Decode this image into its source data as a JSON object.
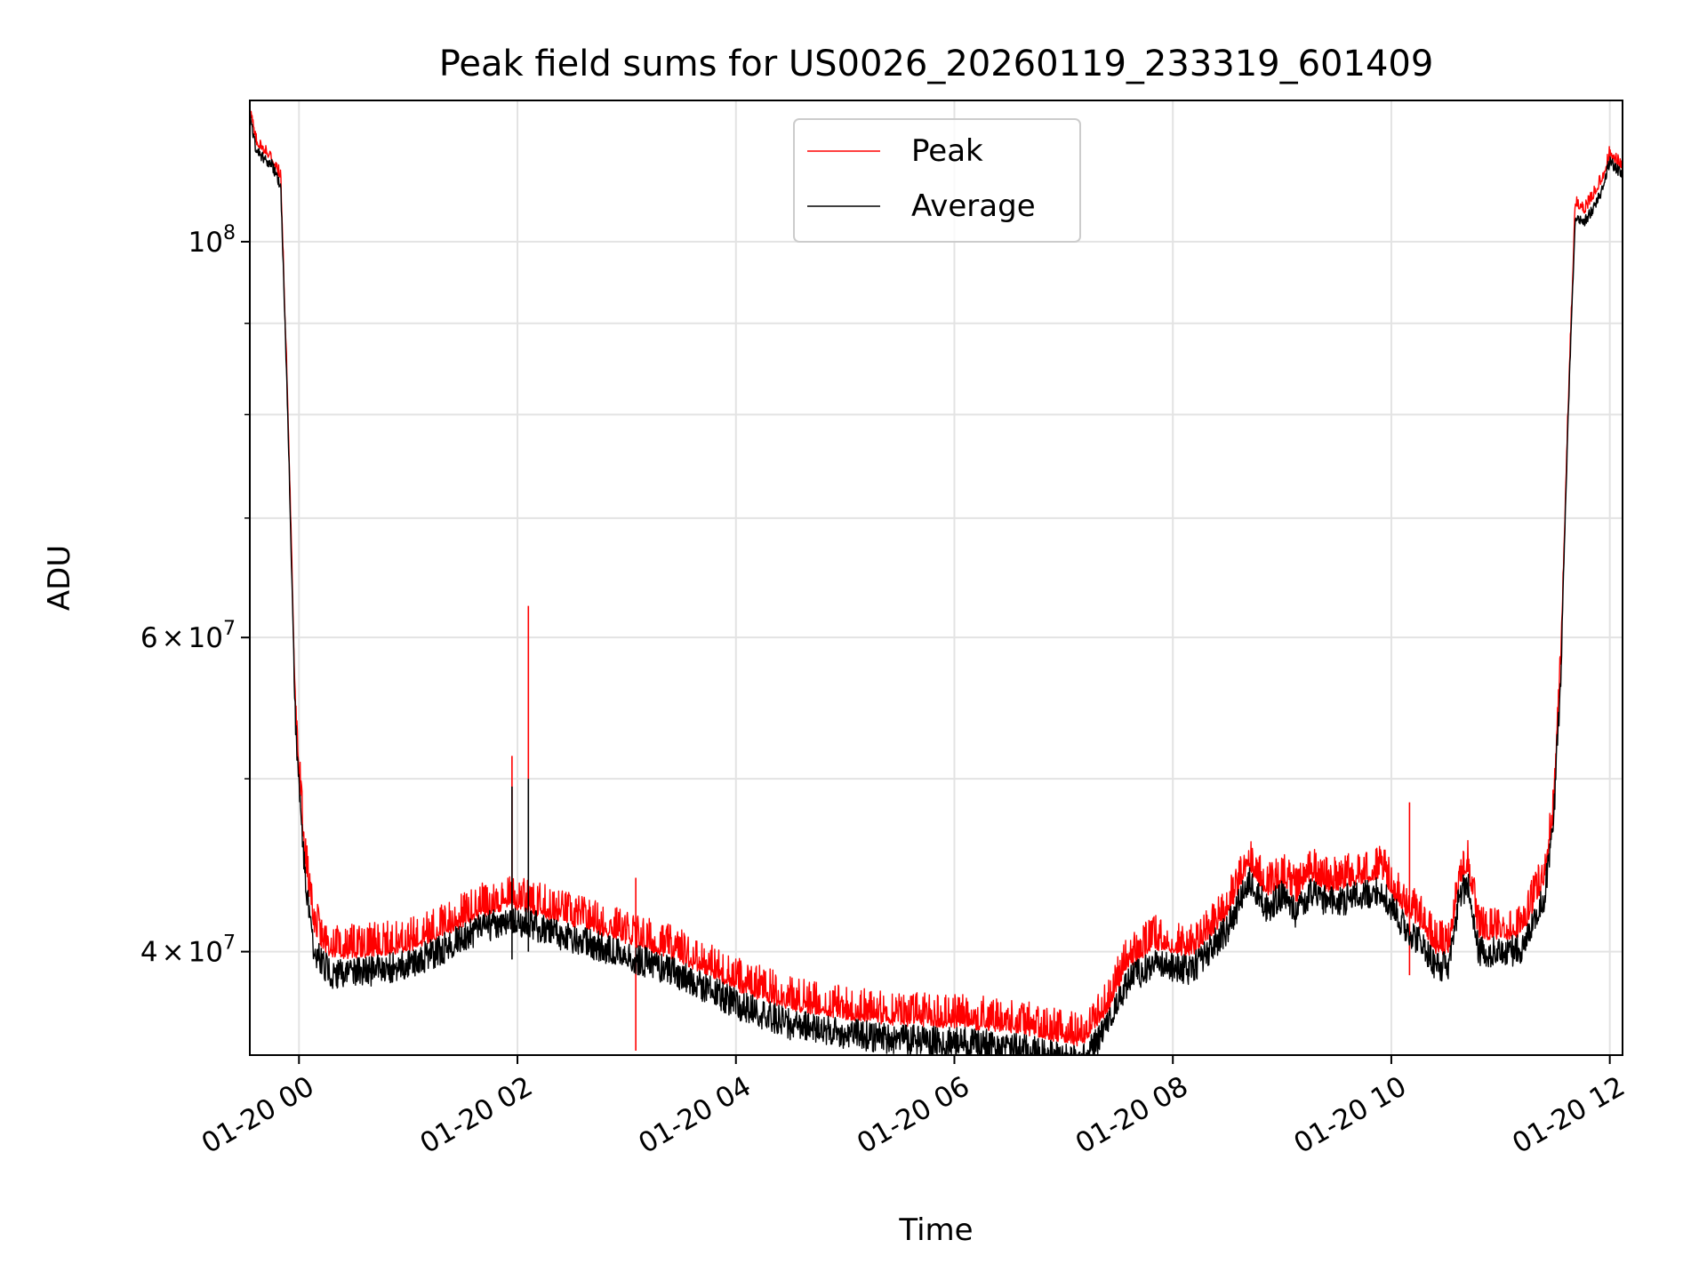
{
  "chart_data": {
    "type": "line",
    "title": "Peak field sums for US0026_20260119_233319_601409",
    "xlabel": "Time",
    "ylabel": "ADU",
    "x_axis_type": "datetime",
    "y_scale": "log",
    "xlim": [
      "2026-01-19 23:33",
      "2026-01-20 12:07"
    ],
    "ylim": [
      35000000,
      120000000
    ],
    "x_ticks": [
      {
        "value": "2026-01-20 00:00",
        "label": "01-20 00"
      },
      {
        "value": "2026-01-20 02:00",
        "label": "01-20 02"
      },
      {
        "value": "2026-01-20 04:00",
        "label": "01-20 04"
      },
      {
        "value": "2026-01-20 06:00",
        "label": "01-20 06"
      },
      {
        "value": "2026-01-20 08:00",
        "label": "01-20 08"
      },
      {
        "value": "2026-01-20 10:00",
        "label": "01-20 10"
      },
      {
        "value": "2026-01-20 12:00",
        "label": "01-20 12"
      }
    ],
    "y_ticks": [
      {
        "value": 40000000,
        "mantissa": "4",
        "exponent": "7"
      },
      {
        "value": 60000000,
        "mantissa": "6",
        "exponent": "7"
      },
      {
        "value": 100000000,
        "mantissa": "",
        "exponent": "8"
      }
    ],
    "y_minor_ticks": [
      50000000,
      70000000,
      80000000,
      90000000
    ],
    "grid": true,
    "legend_position": "top-center",
    "series": [
      {
        "name": "Peak",
        "color": "#ff0000",
        "x": [
          "2026-01-19 23:33",
          "2026-01-19 23:36",
          "2026-01-19 23:40",
          "2026-01-19 23:45",
          "2026-01-19 23:50",
          "2026-01-19 23:54",
          "2026-01-19 23:58",
          "2026-01-20 00:03",
          "2026-01-20 00:08",
          "2026-01-20 00:13",
          "2026-01-20 00:18",
          "2026-01-20 00:25",
          "2026-01-20 00:40",
          "2026-01-20 01:00",
          "2026-01-20 01:20",
          "2026-01-20 01:40",
          "2026-01-20 01:55",
          "2026-01-20 02:05",
          "2026-01-20 02:30",
          "2026-01-20 03:00",
          "2026-01-20 03:30",
          "2026-01-20 04:00",
          "2026-01-20 04:30",
          "2026-01-20 05:00",
          "2026-01-20 05:30",
          "2026-01-20 06:00",
          "2026-01-20 06:30",
          "2026-01-20 07:00",
          "2026-01-20 07:10",
          "2026-01-20 07:25",
          "2026-01-20 07:35",
          "2026-01-20 07:50",
          "2026-01-20 08:10",
          "2026-01-20 08:30",
          "2026-01-20 08:42",
          "2026-01-20 08:52",
          "2026-01-20 09:00",
          "2026-01-20 09:08",
          "2026-01-20 09:16",
          "2026-01-20 09:25",
          "2026-01-20 09:35",
          "2026-01-20 09:45",
          "2026-01-20 09:55",
          "2026-01-20 10:05",
          "2026-01-20 10:15",
          "2026-01-20 10:25",
          "2026-01-20 10:32",
          "2026-01-20 10:37",
          "2026-01-20 10:42",
          "2026-01-20 10:48",
          "2026-01-20 10:55",
          "2026-01-20 11:05",
          "2026-01-20 11:12",
          "2026-01-20 11:18",
          "2026-01-20 11:24",
          "2026-01-20 11:29",
          "2026-01-20 11:33",
          "2026-01-20 11:37",
          "2026-01-20 11:41",
          "2026-01-20 11:46",
          "2026-01-20 11:51",
          "2026-01-20 11:56",
          "2026-01-20 12:00",
          "2026-01-20 12:03",
          "2026-01-20 12:07"
        ],
        "values": [
          119000000,
          114000000,
          112500000,
          111500000,
          108500000,
          80000000,
          55000000,
          45500000,
          41500000,
          40500000,
          40000000,
          40000000,
          40100000,
          40300000,
          41200000,
          42200000,
          42700000,
          42500000,
          41700000,
          40800000,
          39800000,
          38400000,
          37400000,
          37000000,
          36700000,
          36600000,
          36400000,
          35900000,
          35700000,
          37400000,
          39500000,
          40500000,
          40000000,
          42200000,
          44800000,
          43300000,
          44000000,
          43000000,
          44300000,
          43600000,
          43800000,
          44100000,
          44300000,
          42600000,
          41700000,
          40200000,
          40300000,
          43800000,
          44800000,
          41000000,
          41000000,
          41000000,
          41200000,
          42600000,
          44000000,
          48000000,
          58000000,
          80000000,
          105000000,
          104000000,
          106000000,
          108500000,
          112000000,
          111000000,
          110000000
        ],
        "spikes": [
          {
            "x": "2026-01-20 01:57",
            "value": 51500000
          },
          {
            "x": "2026-01-20 02:06",
            "value": 62500000
          },
          {
            "x": "2026-01-20 03:05",
            "value": 44000000
          },
          {
            "x": "2026-01-20 10:10",
            "value": 48500000
          }
        ]
      },
      {
        "name": "Average",
        "color": "#000000",
        "x": [
          "2026-01-19 23:33",
          "2026-01-19 23:36",
          "2026-01-19 23:40",
          "2026-01-19 23:45",
          "2026-01-19 23:50",
          "2026-01-19 23:54",
          "2026-01-19 23:58",
          "2026-01-20 00:03",
          "2026-01-20 00:08",
          "2026-01-20 00:13",
          "2026-01-20 00:18",
          "2026-01-20 00:25",
          "2026-01-20 00:40",
          "2026-01-20 01:00",
          "2026-01-20 01:20",
          "2026-01-20 01:40",
          "2026-01-20 01:55",
          "2026-01-20 02:05",
          "2026-01-20 02:30",
          "2026-01-20 03:00",
          "2026-01-20 03:30",
          "2026-01-20 04:00",
          "2026-01-20 04:30",
          "2026-01-20 05:00",
          "2026-01-20 05:30",
          "2026-01-20 06:00",
          "2026-01-20 06:30",
          "2026-01-20 07:00",
          "2026-01-20 07:10",
          "2026-01-20 07:25",
          "2026-01-20 07:35",
          "2026-01-20 07:50",
          "2026-01-20 08:10",
          "2026-01-20 08:30",
          "2026-01-20 08:42",
          "2026-01-20 08:52",
          "2026-01-20 09:00",
          "2026-01-20 09:08",
          "2026-01-20 09:16",
          "2026-01-20 09:25",
          "2026-01-20 09:35",
          "2026-01-20 09:45",
          "2026-01-20 09:55",
          "2026-01-20 10:05",
          "2026-01-20 10:15",
          "2026-01-20 10:25",
          "2026-01-20 10:32",
          "2026-01-20 10:37",
          "2026-01-20 10:42",
          "2026-01-20 10:48",
          "2026-01-20 10:55",
          "2026-01-20 11:05",
          "2026-01-20 11:12",
          "2026-01-20 11:18",
          "2026-01-20 11:24",
          "2026-01-20 11:29",
          "2026-01-20 11:33",
          "2026-01-20 11:37",
          "2026-01-20 11:41",
          "2026-01-20 11:46",
          "2026-01-20 11:51",
          "2026-01-20 11:56",
          "2026-01-20 12:00",
          "2026-01-20 12:03",
          "2026-01-20 12:07"
        ],
        "values": [
          118000000,
          113000000,
          111500000,
          110500000,
          107500000,
          79000000,
          54000000,
          44500000,
          40300000,
          39300000,
          38900000,
          38900000,
          39000000,
          39300000,
          40200000,
          41200000,
          41700000,
          41500000,
          40700000,
          39800000,
          38800000,
          37400000,
          36400000,
          36000000,
          35700000,
          35600000,
          35400000,
          34900000,
          34700000,
          36400000,
          38500000,
          39400000,
          39000000,
          41200000,
          43800000,
          42300000,
          43000000,
          42000000,
          43300000,
          42600000,
          42800000,
          43100000,
          43300000,
          41600000,
          40600000,
          39200000,
          39300000,
          42800000,
          43800000,
          40000000,
          40000000,
          40000000,
          40200000,
          41600000,
          43000000,
          47000000,
          57000000,
          79000000,
          103500000,
          102500000,
          104500000,
          107000000,
          111000000,
          110000000,
          109000000
        ],
        "spikes": [
          {
            "x": "2026-01-20 01:57",
            "value": 49500000
          },
          {
            "x": "2026-01-20 02:06",
            "value": 50000000
          }
        ]
      }
    ]
  }
}
